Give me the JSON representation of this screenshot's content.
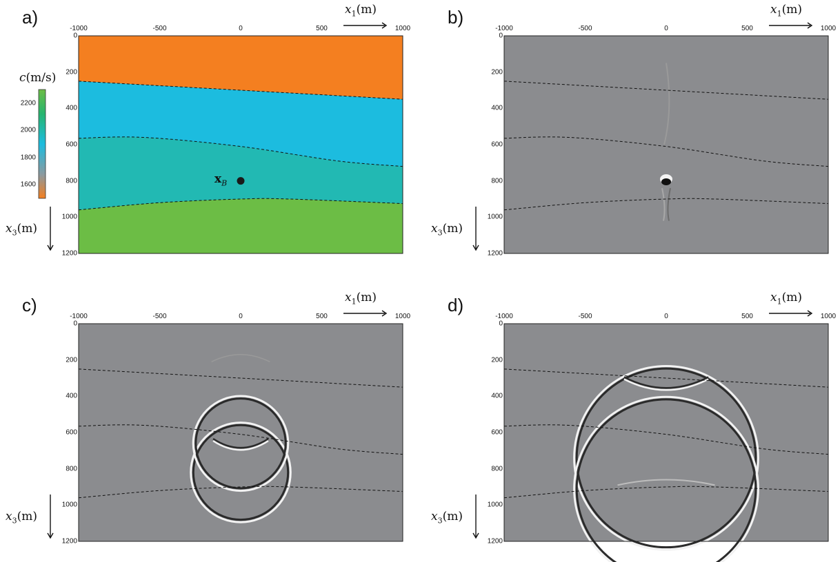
{
  "panels": [
    {
      "label": "a)",
      "type": "velocity_model"
    },
    {
      "label": "b)",
      "type": "wavefield"
    },
    {
      "label": "c)",
      "type": "wavefield"
    },
    {
      "label": "d)",
      "type": "wavefield"
    }
  ],
  "axes": {
    "x_label_var": "x",
    "x_label_sub": "1",
    "x_label_unit": "(m)",
    "y_label_var": "x",
    "y_label_sub": "3",
    "y_label_unit": "(m)",
    "x_ticks": [
      "-1000",
      "-500",
      "0",
      "500",
      "1000"
    ],
    "y_ticks": [
      "0",
      "200",
      "400",
      "600",
      "800",
      "1000",
      "1200"
    ],
    "xlim": [
      -1000,
      1000
    ],
    "ylim": [
      0,
      1200
    ]
  },
  "colorbar": {
    "label_var": "c",
    "label_unit": "(m/s)",
    "ticks": [
      "2200",
      "2000",
      "1800",
      "1600"
    ],
    "range": [
      1500,
      2300
    ]
  },
  "source_point": {
    "label_var": "x",
    "label_sub": "B",
    "x": 0,
    "y": 800
  },
  "colors": {
    "layer1": "#f47f20",
    "layer2": "#1cbcdf",
    "layer3": "#22b9b3",
    "layer4": "#6cbd45",
    "background_gray": "#8b8c8f"
  },
  "chart_data": {
    "type": "scatter",
    "title": "",
    "xlabel": "x1(m)",
    "ylabel": "x3(m)",
    "xlim": [
      -1000,
      1000
    ],
    "ylim": [
      0,
      1200
    ],
    "interfaces": [
      {
        "x": [
          -1000,
          0,
          1000
        ],
        "y": [
          250,
          300,
          350
        ]
      },
      {
        "x": [
          -1000,
          -600,
          0,
          600,
          1000
        ],
        "y": [
          565,
          560,
          610,
          690,
          720
        ]
      },
      {
        "x": [
          -1000,
          -500,
          0,
          300,
          1000
        ],
        "y": [
          960,
          920,
          900,
          900,
          925
        ]
      }
    ],
    "velocity_layers_m_per_s": [
      1600,
      2000,
      1900,
      2300
    ],
    "point": {
      "x": 0,
      "y": 800
    }
  }
}
